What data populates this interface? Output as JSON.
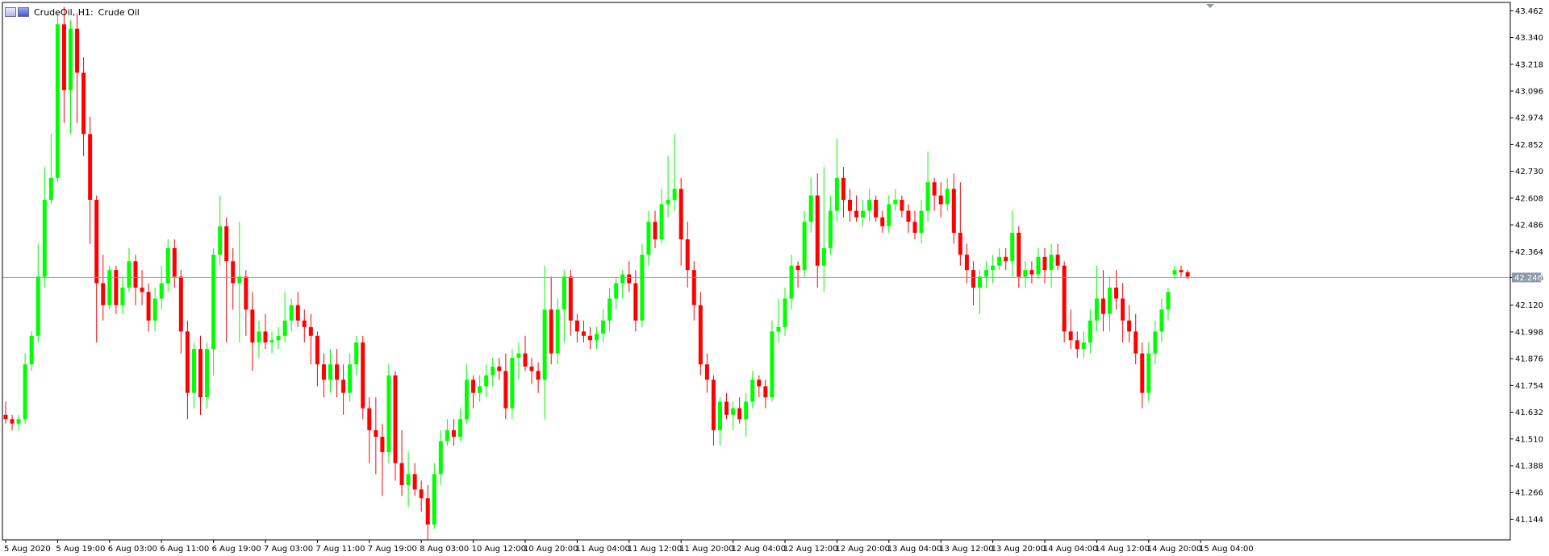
{
  "header": {
    "symbol_timeframe": "CrudeOil, H1:",
    "description": "Crude Oil"
  },
  "current_price": {
    "label": "42.246",
    "value": 42.246
  },
  "colors": {
    "bull": "#00ff00",
    "bear": "#ff0000",
    "wick_bull": "#00ff00",
    "wick_bear": "#ff0000",
    "axis": "#000000",
    "price_line": "#8a9aa8",
    "price_tag": "#8a9aa8"
  },
  "chart_data": {
    "type": "candlestick",
    "title": "",
    "xlabel": "",
    "ylabel": "",
    "ylim": [
      41.05,
      43.5
    ],
    "y_ticks": [
      "43.462",
      "43.340",
      "43.218",
      "43.096",
      "42.974",
      "42.852",
      "42.730",
      "42.608",
      "42.486",
      "42.364",
      "42.246",
      "42.120",
      "41.998",
      "41.876",
      "41.754",
      "41.632",
      "41.510",
      "41.388",
      "41.266",
      "41.144"
    ],
    "x_tick_labels": [
      {
        "label": "5 Aug 2020",
        "i": 0
      },
      {
        "label": "5 Aug 19:00",
        "i": 8
      },
      {
        "label": "6 Aug 03:00",
        "i": 16
      },
      {
        "label": "6 Aug 11:00",
        "i": 24
      },
      {
        "label": "6 Aug 19:00",
        "i": 32
      },
      {
        "label": "7 Aug 03:00",
        "i": 40
      },
      {
        "label": "7 Aug 11:00",
        "i": 48
      },
      {
        "label": "7 Aug 19:00",
        "i": 56
      },
      {
        "label": "8 Aug 03:00",
        "i": 64
      },
      {
        "label": "10 Aug 12:00",
        "i": 72
      },
      {
        "label": "10 Aug 20:00",
        "i": 80
      },
      {
        "label": "11 Aug 04:00",
        "i": 88
      },
      {
        "label": "11 Aug 12:00",
        "i": 96
      },
      {
        "label": "11 Aug 20:00",
        "i": 104
      },
      {
        "label": "12 Aug 04:00",
        "i": 112
      },
      {
        "label": "12 Aug 12:00",
        "i": 120
      },
      {
        "label": "12 Aug 20:00",
        "i": 128
      },
      {
        "label": "13 Aug 04:00",
        "i": 136
      },
      {
        "label": "13 Aug 12:00",
        "i": 144
      },
      {
        "label": "13 Aug 20:00",
        "i": 152
      },
      {
        "label": "14 Aug 04:00",
        "i": 160
      },
      {
        "label": "14 Aug 12:00",
        "i": 168
      },
      {
        "label": "14 Aug 20:00",
        "i": 176
      },
      {
        "label": "15 Aug 04:00",
        "i": 184
      }
    ],
    "ohlc": [
      [
        41.62,
        41.68,
        41.58,
        41.6
      ],
      [
        41.6,
        41.62,
        41.55,
        41.58
      ],
      [
        41.58,
        41.62,
        41.55,
        41.6
      ],
      [
        41.6,
        41.9,
        41.58,
        41.85
      ],
      [
        41.85,
        42.0,
        41.82,
        41.98
      ],
      [
        41.98,
        42.4,
        41.95,
        42.25
      ],
      [
        42.25,
        42.75,
        42.2,
        42.6
      ],
      [
        42.6,
        42.9,
        42.58,
        42.7
      ],
      [
        42.7,
        43.45,
        42.68,
        43.4
      ],
      [
        43.4,
        43.48,
        42.95,
        43.1
      ],
      [
        43.1,
        43.42,
        42.9,
        43.38
      ],
      [
        43.38,
        43.45,
        42.95,
        43.18
      ],
      [
        43.18,
        43.25,
        42.8,
        42.9
      ],
      [
        42.9,
        42.98,
        42.4,
        42.6
      ],
      [
        42.6,
        42.62,
        41.95,
        42.22
      ],
      [
        42.22,
        42.35,
        42.05,
        42.12
      ],
      [
        42.12,
        42.3,
        42.1,
        42.28
      ],
      [
        42.28,
        42.3,
        42.08,
        42.12
      ],
      [
        42.12,
        42.25,
        42.08,
        42.2
      ],
      [
        42.2,
        42.38,
        42.18,
        42.32
      ],
      [
        42.32,
        42.35,
        42.12,
        42.2
      ],
      [
        42.2,
        42.28,
        42.12,
        42.18
      ],
      [
        42.18,
        42.22,
        42.0,
        42.05
      ],
      [
        42.05,
        42.2,
        42.0,
        42.15
      ],
      [
        42.15,
        42.3,
        42.1,
        42.22
      ],
      [
        42.22,
        42.42,
        42.18,
        42.38
      ],
      [
        42.38,
        42.42,
        42.2,
        42.25
      ],
      [
        42.25,
        42.28,
        41.9,
        42.0
      ],
      [
        42.0,
        42.05,
        41.6,
        41.72
      ],
      [
        41.72,
        41.95,
        41.65,
        41.92
      ],
      [
        41.92,
        41.98,
        41.62,
        41.7
      ],
      [
        41.7,
        41.95,
        41.65,
        41.92
      ],
      [
        41.92,
        42.38,
        41.8,
        42.35
      ],
      [
        42.35,
        42.62,
        42.3,
        42.48
      ],
      [
        42.48,
        42.52,
        41.95,
        42.32
      ],
      [
        42.32,
        42.38,
        42.1,
        42.22
      ],
      [
        42.22,
        42.5,
        41.95,
        42.25
      ],
      [
        42.25,
        42.28,
        41.98,
        42.1
      ],
      [
        42.1,
        42.18,
        41.82,
        41.95
      ],
      [
        41.95,
        42.05,
        41.88,
        42.0
      ],
      [
        42.0,
        42.08,
        41.92,
        41.95
      ],
      [
        41.95,
        42.0,
        41.9,
        41.96
      ],
      [
        41.96,
        42.02,
        41.92,
        41.98
      ],
      [
        41.98,
        42.18,
        41.95,
        42.05
      ],
      [
        42.05,
        42.15,
        42.0,
        42.12
      ],
      [
        42.12,
        42.18,
        42.02,
        42.05
      ],
      [
        42.05,
        42.1,
        41.95,
        42.02
      ],
      [
        42.02,
        42.08,
        41.85,
        41.98
      ],
      [
        41.98,
        42.0,
        41.75,
        41.85
      ],
      [
        41.85,
        41.9,
        41.7,
        41.78
      ],
      [
        41.78,
        41.92,
        41.72,
        41.85
      ],
      [
        41.85,
        41.92,
        41.7,
        41.78
      ],
      [
        41.78,
        41.85,
        41.62,
        41.72
      ],
      [
        41.72,
        41.9,
        41.68,
        41.85
      ],
      [
        41.85,
        41.98,
        41.8,
        41.95
      ],
      [
        41.95,
        41.98,
        41.6,
        41.65
      ],
      [
        41.65,
        41.7,
        41.4,
        41.55
      ],
      [
        41.55,
        41.7,
        41.35,
        41.52
      ],
      [
        41.52,
        41.58,
        41.25,
        41.45
      ],
      [
        41.45,
        41.85,
        41.4,
        41.8
      ],
      [
        41.8,
        41.82,
        41.32,
        41.4
      ],
      [
        41.4,
        41.55,
        41.25,
        41.3
      ],
      [
        41.3,
        41.45,
        41.2,
        41.35
      ],
      [
        41.35,
        41.4,
        41.25,
        41.28
      ],
      [
        41.28,
        41.32,
        41.18,
        41.24
      ],
      [
        41.24,
        41.3,
        41.05,
        41.12
      ],
      [
        41.12,
        41.4,
        41.1,
        41.35
      ],
      [
        41.35,
        41.55,
        41.3,
        41.5
      ],
      [
        41.5,
        41.6,
        41.48,
        41.55
      ],
      [
        41.55,
        41.6,
        41.48,
        41.52
      ],
      [
        41.52,
        41.65,
        41.5,
        41.6
      ],
      [
        41.6,
        41.85,
        41.58,
        41.78
      ],
      [
        41.78,
        41.8,
        41.65,
        41.72
      ],
      [
        41.72,
        41.8,
        41.68,
        41.75
      ],
      [
        41.75,
        41.85,
        41.7,
        41.8
      ],
      [
        41.8,
        41.88,
        41.75,
        41.84
      ],
      [
        41.84,
        41.88,
        41.78,
        41.82
      ],
      [
        41.82,
        41.9,
        41.6,
        41.65
      ],
      [
        41.65,
        41.92,
        41.6,
        41.88
      ],
      [
        41.88,
        41.95,
        41.78,
        41.9
      ],
      [
        41.9,
        41.98,
        41.82,
        41.84
      ],
      [
        41.84,
        41.88,
        41.76,
        41.82
      ],
      [
        41.82,
        41.86,
        41.72,
        41.78
      ],
      [
        41.78,
        42.3,
        41.6,
        42.1
      ],
      [
        42.1,
        42.25,
        41.85,
        41.9
      ],
      [
        41.9,
        42.15,
        41.85,
        42.1
      ],
      [
        42.1,
        42.28,
        41.95,
        42.25
      ],
      [
        42.25,
        42.28,
        41.98,
        42.05
      ],
      [
        42.05,
        42.08,
        41.95,
        42.0
      ],
      [
        42.0,
        42.05,
        41.95,
        41.98
      ],
      [
        41.98,
        42.02,
        41.92,
        41.96
      ],
      [
        41.96,
        42.02,
        41.92,
        41.99
      ],
      [
        41.99,
        42.1,
        41.95,
        42.05
      ],
      [
        42.05,
        42.2,
        42.0,
        42.15
      ],
      [
        42.15,
        42.25,
        42.1,
        42.22
      ],
      [
        42.22,
        42.28,
        42.15,
        42.26
      ],
      [
        42.26,
        42.32,
        42.18,
        42.22
      ],
      [
        42.22,
        42.28,
        42.0,
        42.05
      ],
      [
        42.05,
        42.4,
        42.02,
        42.35
      ],
      [
        42.35,
        42.55,
        42.3,
        42.5
      ],
      [
        42.5,
        42.55,
        42.38,
        42.42
      ],
      [
        42.42,
        42.65,
        42.4,
        42.58
      ],
      [
        42.58,
        42.8,
        42.52,
        42.6
      ],
      [
        42.6,
        42.9,
        42.55,
        42.65
      ],
      [
        42.65,
        42.7,
        42.3,
        42.42
      ],
      [
        42.42,
        42.5,
        42.2,
        42.28
      ],
      [
        42.28,
        42.32,
        42.05,
        42.12
      ],
      [
        42.12,
        42.18,
        41.8,
        41.85
      ],
      [
        41.85,
        41.9,
        41.72,
        41.78
      ],
      [
        41.78,
        41.8,
        41.48,
        41.55
      ],
      [
        41.55,
        41.7,
        41.48,
        41.68
      ],
      [
        41.68,
        41.72,
        41.6,
        41.62
      ],
      [
        41.62,
        41.68,
        41.55,
        41.65
      ],
      [
        41.65,
        41.7,
        41.58,
        41.6
      ],
      [
        41.6,
        41.72,
        41.52,
        41.68
      ],
      [
        41.68,
        41.82,
        41.65,
        41.78
      ],
      [
        41.78,
        41.8,
        41.7,
        41.75
      ],
      [
        41.75,
        41.78,
        41.65,
        41.7
      ],
      [
        41.7,
        42.05,
        41.68,
        42.0
      ],
      [
        42.0,
        42.15,
        41.95,
        42.02
      ],
      [
        42.02,
        42.2,
        41.98,
        42.15
      ],
      [
        42.15,
        42.35,
        42.1,
        42.3
      ],
      [
        42.3,
        42.32,
        42.2,
        42.28
      ],
      [
        42.28,
        42.55,
        42.25,
        42.5
      ],
      [
        42.5,
        42.7,
        42.45,
        42.62
      ],
      [
        42.62,
        42.72,
        42.2,
        42.3
      ],
      [
        42.3,
        42.75,
        42.18,
        42.38
      ],
      [
        42.38,
        42.62,
        42.35,
        42.55
      ],
      [
        42.55,
        42.88,
        42.5,
        42.7
      ],
      [
        42.7,
        42.75,
        42.52,
        42.6
      ],
      [
        42.6,
        42.65,
        42.5,
        42.55
      ],
      [
        42.55,
        42.62,
        42.5,
        42.52
      ],
      [
        42.52,
        42.6,
        42.48,
        42.55
      ],
      [
        42.55,
        42.65,
        42.5,
        42.6
      ],
      [
        42.6,
        42.62,
        42.5,
        42.52
      ],
      [
        42.52,
        42.55,
        42.45,
        42.48
      ],
      [
        42.48,
        42.62,
        42.45,
        42.58
      ],
      [
        42.58,
        42.65,
        42.55,
        42.6
      ],
      [
        42.6,
        42.62,
        42.52,
        42.55
      ],
      [
        42.55,
        42.58,
        42.45,
        42.5
      ],
      [
        42.5,
        42.55,
        42.42,
        42.45
      ],
      [
        42.45,
        42.6,
        42.4,
        42.55
      ],
      [
        42.55,
        42.82,
        42.5,
        42.68
      ],
      [
        42.68,
        42.7,
        42.55,
        42.62
      ],
      [
        42.62,
        42.68,
        42.52,
        42.58
      ],
      [
        42.58,
        42.7,
        42.55,
        42.65
      ],
      [
        42.65,
        42.72,
        42.4,
        42.45
      ],
      [
        42.45,
        42.68,
        42.3,
        42.35
      ],
      [
        42.35,
        42.4,
        42.22,
        42.28
      ],
      [
        42.28,
        42.32,
        42.12,
        42.2
      ],
      [
        42.2,
        42.28,
        42.08,
        42.25
      ],
      [
        42.25,
        42.32,
        42.2,
        42.28
      ],
      [
        42.28,
        42.35,
        42.22,
        42.3
      ],
      [
        42.3,
        42.38,
        42.28,
        42.34
      ],
      [
        42.34,
        42.38,
        42.28,
        42.32
      ],
      [
        42.32,
        42.55,
        42.25,
        42.45
      ],
      [
        42.45,
        42.48,
        42.2,
        42.25
      ],
      [
        42.25,
        42.32,
        42.2,
        42.28
      ],
      [
        42.28,
        42.32,
        42.22,
        42.26
      ],
      [
        42.26,
        42.38,
        42.24,
        42.34
      ],
      [
        42.34,
        42.38,
        42.22,
        42.28
      ],
      [
        42.28,
        42.4,
        42.2,
        42.35
      ],
      [
        42.35,
        42.4,
        42.28,
        42.3
      ],
      [
        42.3,
        42.32,
        41.95,
        42.0
      ],
      [
        42.0,
        42.1,
        41.92,
        41.96
      ],
      [
        41.96,
        42.0,
        41.88,
        41.92
      ],
      [
        41.92,
        42.0,
        41.88,
        41.95
      ],
      [
        41.95,
        42.1,
        41.9,
        42.05
      ],
      [
        42.05,
        42.3,
        42.0,
        42.15
      ],
      [
        42.15,
        42.28,
        42.0,
        42.08
      ],
      [
        42.08,
        42.25,
        42.0,
        42.2
      ],
      [
        42.2,
        42.28,
        42.1,
        42.15
      ],
      [
        42.15,
        42.22,
        41.95,
        42.05
      ],
      [
        42.05,
        42.12,
        41.95,
        42.0
      ],
      [
        42.0,
        42.08,
        41.85,
        41.9
      ],
      [
        41.9,
        41.95,
        41.65,
        41.72
      ],
      [
        41.72,
        41.95,
        41.68,
        41.9
      ],
      [
        41.9,
        42.05,
        41.85,
        42.0
      ],
      [
        42.0,
        42.15,
        41.95,
        42.1
      ],
      [
        42.1,
        42.2,
        42.05,
        42.18
      ],
      [
        42.26,
        42.3,
        42.24,
        42.28
      ],
      [
        42.28,
        42.3,
        42.25,
        42.27
      ],
      [
        42.27,
        42.28,
        42.24,
        42.25
      ]
    ],
    "grid": false,
    "legend": "none"
  }
}
